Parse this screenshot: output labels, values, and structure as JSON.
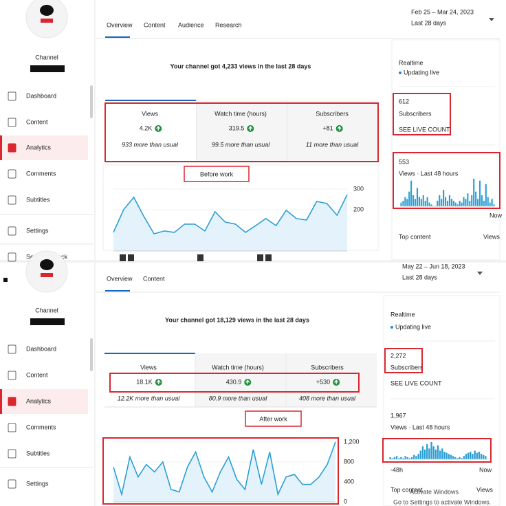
{
  "panels": [
    {
      "sidebar": {
        "channel": "Channel",
        "menu": [
          "Dashboard",
          "Content",
          "Analytics",
          "Comments",
          "Subtitles",
          "Settings",
          "Send feedback"
        ]
      },
      "tabs": [
        "Overview",
        "Content",
        "Audience",
        "Research"
      ],
      "date_range": "Feb 25 – Mar 24, 2023",
      "period": "Last 28 days",
      "heading": "Your channel got 4,233 views in the last 28 days",
      "metrics": [
        {
          "label": "Views",
          "value": "4.2K",
          "note": "933 more than usual"
        },
        {
          "label": "Watch time (hours)",
          "value": "319.5",
          "note": "99.5 more than usual"
        },
        {
          "label": "Subscribers",
          "value": "+81",
          "note": "11 more than usual"
        }
      ],
      "stage_label": "Before work",
      "views_chart": {
        "type": "line",
        "values": [
          90,
          200,
          260,
          167,
          83,
          97,
          90,
          130,
          130,
          97,
          190,
          140,
          130,
          90,
          123,
          157,
          123,
          197,
          157,
          150,
          240,
          230,
          173,
          273
        ],
        "color": "#2a9fd6",
        "ylim": [
          0,
          330
        ],
        "yticks": [
          200,
          300
        ]
      },
      "realtime": {
        "title": "Realtime",
        "status": "Updating live",
        "subscribers": "612",
        "subscribers_label": "Subscribers",
        "live_count": "SEE LIVE COUNT",
        "views": "553",
        "views_label": "Views · Last 48 hours",
        "bars": [
          2,
          3,
          5,
          4,
          8,
          14,
          6,
          4,
          10,
          5,
          4,
          6,
          3,
          5,
          2,
          1,
          0,
          0,
          3,
          6,
          4,
          9,
          5,
          3,
          6,
          4,
          3,
          2,
          1,
          3,
          2,
          5,
          4,
          7,
          3,
          6,
          15,
          8,
          4,
          14,
          6,
          3,
          12,
          5,
          2,
          4,
          1
        ],
        "end_label": "Now",
        "top_content": "Top content",
        "views_column": "Views"
      }
    },
    {
      "sidebar": {
        "channel": "Channel",
        "menu": [
          "Dashboard",
          "Content",
          "Analytics",
          "Comments",
          "Subtitles",
          "Settings"
        ]
      },
      "tabs": [
        "Overview",
        "Content"
      ],
      "date_range": "May 22 – Jun 18, 2023",
      "period": "Last 28 days",
      "heading": "Your channel got 18,129 views in the last 28 days",
      "metrics": [
        {
          "label": "Views",
          "value": "18.1K",
          "note": "12.2K more than usual"
        },
        {
          "label": "Watch time (hours)",
          "value": "430.9",
          "note": "80.9 more than usual"
        },
        {
          "label": "Subscribers",
          "value": "+530",
          "note": "408 more than usual"
        }
      ],
      "stage_label": "After work",
      "views_chart": {
        "type": "line",
        "values": [
          700,
          150,
          900,
          500,
          750,
          600,
          800,
          250,
          200,
          700,
          1000,
          500,
          200,
          600,
          900,
          450,
          250,
          1050,
          350,
          1000,
          150,
          500,
          550,
          350,
          350,
          500,
          750,
          1200
        ],
        "color": "#2a9fd6",
        "ylim": [
          0,
          1240
        ],
        "yticks": [
          0,
          400,
          800,
          {
            "value": 1200,
            "label": "1,200"
          }
        ]
      },
      "realtime": {
        "title": "Realtime",
        "status": "Updating live",
        "subscribers": "2,272",
        "subscribers_label": "Subscribers",
        "live_count": "SEE LIVE COUNT",
        "views": "1,967",
        "views_label": "Views · Last 48 hours",
        "bars": [
          2,
          1,
          2,
          3,
          1,
          2,
          1,
          3,
          2,
          1,
          2,
          4,
          3,
          5,
          8,
          12,
          9,
          14,
          10,
          16,
          12,
          9,
          13,
          8,
          10,
          7,
          6,
          5,
          4,
          3,
          2,
          1,
          2,
          1,
          3,
          5,
          6,
          7,
          5,
          8,
          6,
          7,
          5,
          4,
          3
        ],
        "start_label": "-48h",
        "end_label": "Now",
        "top_content": "Top content",
        "views_column": "Views"
      }
    }
  ],
  "watermark": {
    "title": "Activate Windows",
    "subtitle": "Go to Settings to activate Windows."
  }
}
